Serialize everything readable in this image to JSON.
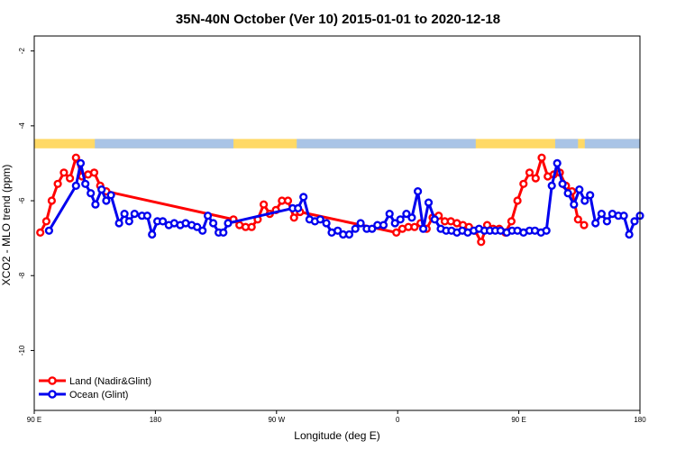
{
  "chart_data": {
    "type": "line",
    "title": "35N-40N October (Ver 10)   2015-01-01 to 2020-12-18",
    "xlabel": "Longitude (deg E)",
    "ylabel": "XCO2 - MLO trend (ppm)",
    "xlim": [
      90,
      540
    ],
    "ylim": [
      -11.6,
      -1.6
    ],
    "x_ticks": [
      {
        "value": 90,
        "label": "90 E"
      },
      {
        "value": 180,
        "label": "180"
      },
      {
        "value": 270,
        "label": "90 W"
      },
      {
        "value": 360,
        "label": "0"
      },
      {
        "value": 450,
        "label": "90 E"
      },
      {
        "value": 540,
        "label": "180"
      }
    ],
    "y_ticks": [
      {
        "value": -2,
        "label": "-2"
      },
      {
        "value": -4,
        "label": "-4"
      },
      {
        "value": -6,
        "label": "-6"
      },
      {
        "value": -8,
        "label": "-8"
      },
      {
        "value": -10,
        "label": "-10"
      }
    ],
    "legend_position": "bottom-left",
    "colors": {
      "land": "#ff0000",
      "ocean": "#0000ee",
      "map_land": "#ffd966",
      "map_ocean": "#a9c4e6"
    },
    "land_mask": {
      "y_top": -4.35,
      "y_bottom": -4.6,
      "ocean_spans": [
        [
          135,
          238
        ],
        [
          285,
          418
        ],
        [
          477,
          494
        ],
        [
          499,
          540
        ]
      ]
    },
    "series": [
      {
        "name": "Land (Nadir&Glint)",
        "color": "#ff0000",
        "x": [
          94.5,
          99,
          103,
          107.5,
          112,
          116.5,
          121,
          125.5,
          130,
          134.5,
          139,
          143.5,
          238,
          242.5,
          247,
          251.5,
          256,
          260.5,
          265,
          269.5,
          274,
          278.5,
          283,
          287.5,
          359,
          363.5,
          368,
          372.5,
          377,
          381.5,
          386,
          390.5,
          395,
          399.5,
          404,
          408.5,
          413,
          417.5,
          422,
          426.5,
          431,
          435.5,
          440,
          444.5,
          449,
          453.5,
          458,
          462.5,
          467,
          471.5,
          476,
          480.5,
          485,
          489.5,
          494,
          498.5
        ],
        "values": [
          -6.85,
          -6.55,
          -6.0,
          -5.55,
          -5.25,
          -5.4,
          -4.85,
          -5.35,
          -5.3,
          -5.25,
          -5.6,
          -5.75,
          -6.5,
          -6.65,
          -6.7,
          -6.7,
          -6.5,
          -6.1,
          -6.35,
          -6.25,
          -6.0,
          -6.0,
          -6.45,
          -6.3,
          -6.85,
          -6.75,
          -6.7,
          -6.7,
          -6.6,
          -6.75,
          -6.45,
          -6.4,
          -6.55,
          -6.55,
          -6.6,
          -6.65,
          -6.7,
          -6.8,
          -7.1,
          -6.65,
          -6.75,
          -6.75,
          -6.85,
          -6.55,
          -6.0,
          -5.55,
          -5.25,
          -5.4,
          -4.85,
          -5.35,
          -5.3,
          -5.25,
          -5.6,
          -5.75,
          -6.5,
          -6.65
        ]
      },
      {
        "name": "Ocean (Glint)",
        "color": "#0000ee",
        "x": [
          101,
          121,
          124.5,
          128,
          132,
          135.5,
          140,
          143.5,
          147,
          153,
          157,
          160.5,
          164.5,
          170,
          174,
          177.5,
          181.5,
          185.5,
          190,
          194,
          198.5,
          202.5,
          207,
          211,
          215,
          219,
          223,
          227,
          230.5,
          234,
          282,
          286,
          290,
          294.5,
          298.5,
          302.5,
          307,
          311,
          315.5,
          319.5,
          324,
          328.5,
          332.5,
          337,
          341,
          345,
          349.5,
          354,
          358,
          362,
          366.5,
          370.5,
          375,
          379,
          383,
          387.5,
          392,
          396,
          400,
          404,
          408,
          412,
          416.5,
          420.5,
          424.5,
          428.5,
          432.5,
          436.5,
          441,
          445,
          449,
          453.5,
          458,
          462,
          466.5,
          470.5,
          474.5,
          478.5,
          482.5,
          486.5,
          491,
          495,
          499,
          503,
          507,
          511.5,
          515.5,
          519.5,
          524,
          528,
          532,
          536,
          540
        ],
        "values": [
          -6.8,
          -5.6,
          -5.0,
          -5.55,
          -5.8,
          -6.1,
          -5.7,
          -6.0,
          -5.85,
          -6.6,
          -6.35,
          -6.55,
          -6.35,
          -6.4,
          -6.4,
          -6.9,
          -6.55,
          -6.55,
          -6.65,
          -6.6,
          -6.65,
          -6.6,
          -6.65,
          -6.7,
          -6.8,
          -6.4,
          -6.6,
          -6.85,
          -6.85,
          -6.6,
          -6.2,
          -6.2,
          -5.9,
          -6.5,
          -6.55,
          -6.5,
          -6.6,
          -6.85,
          -6.8,
          -6.9,
          -6.9,
          -6.75,
          -6.6,
          -6.75,
          -6.75,
          -6.65,
          -6.65,
          -6.35,
          -6.6,
          -6.5,
          -6.35,
          -6.45,
          -5.75,
          -6.75,
          -6.05,
          -6.5,
          -6.75,
          -6.8,
          -6.8,
          -6.85,
          -6.8,
          -6.85,
          -6.8,
          -6.75,
          -6.8,
          -6.8,
          -6.8,
          -6.8,
          -6.85,
          -6.8,
          -6.8,
          -6.85,
          -6.8,
          -6.8,
          -6.85,
          -6.8,
          -5.6,
          -5.0,
          -5.55,
          -5.8,
          -6.1,
          -5.7,
          -6.0,
          -5.85,
          -6.6,
          -6.35,
          -6.55,
          -6.35,
          -6.4,
          -6.4,
          -6.9,
          -6.55,
          -6.4
        ]
      }
    ]
  }
}
